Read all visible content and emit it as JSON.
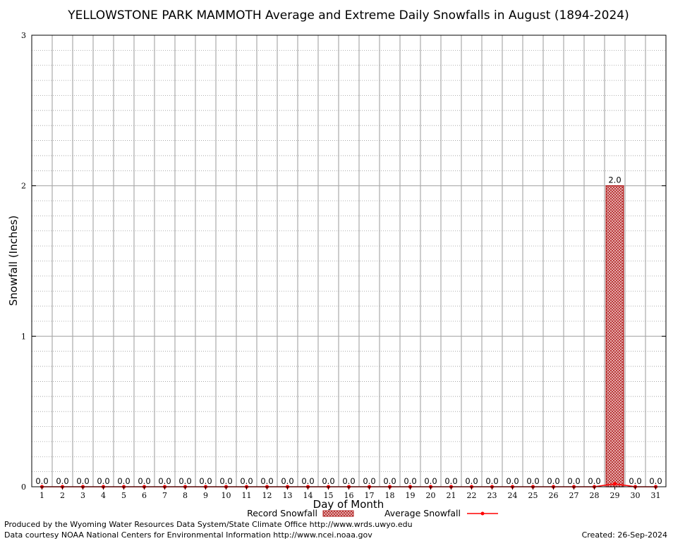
{
  "chart_data": {
    "type": "bar",
    "title": "YELLOWSTONE PARK MAMMOTH Average and Extreme Daily Snowfalls in August (1894-2024)",
    "xlabel": "Day of Month",
    "ylabel": "Snowfall (Inches)",
    "ylim": [
      0,
      3
    ],
    "yticks": [
      "0",
      "1",
      "2",
      "3"
    ],
    "categories": [
      "1",
      "2",
      "3",
      "4",
      "5",
      "6",
      "7",
      "8",
      "9",
      "10",
      "11",
      "12",
      "13",
      "14",
      "15",
      "16",
      "17",
      "18",
      "19",
      "20",
      "21",
      "22",
      "23",
      "24",
      "25",
      "26",
      "27",
      "28",
      "29",
      "30",
      "31"
    ],
    "series": [
      {
        "name": "Record Snowfall",
        "kind": "bar",
        "color": "#b22222",
        "values": [
          0,
          0,
          0,
          0,
          0,
          0,
          0,
          0,
          0,
          0,
          0,
          0,
          0,
          0,
          0,
          0,
          0,
          0,
          0,
          0,
          0,
          0,
          0,
          0,
          0,
          0,
          0,
          0,
          2.0,
          0,
          0
        ],
        "labels": [
          "0.0",
          "0.0",
          "0.0",
          "0.0",
          "0.0",
          "0.0",
          "0.0",
          "0.0",
          "0.0",
          "0.0",
          "0.0",
          "0.0",
          "0.0",
          "0.0",
          "0.0",
          "0.0",
          "0.0",
          "0.0",
          "0.0",
          "0.0",
          "0.0",
          "0.0",
          "0.0",
          "0.0",
          "0.0",
          "0.0",
          "0.0",
          "0.0",
          "2.0",
          "0.0",
          "0.0"
        ]
      },
      {
        "name": "Average Snowfall",
        "kind": "line",
        "color": "#ff0000",
        "values": [
          0,
          0,
          0,
          0,
          0,
          0,
          0,
          0,
          0,
          0,
          0,
          0,
          0,
          0,
          0,
          0,
          0,
          0,
          0,
          0,
          0,
          0,
          0,
          0,
          0,
          0,
          0,
          0,
          0.02,
          0,
          0
        ]
      }
    ],
    "grid": true,
    "legend_position": "bottom"
  },
  "footer": {
    "left_line1": "Produced by the Wyoming Water Resources Data System/State Climate Office http://www.wrds.uwyo.edu",
    "left_line2": "Data courtesy NOAA National Centers for Environmental Information http://www.ncei.noaa.gov",
    "created": "Created:  26-Sep-2024"
  }
}
